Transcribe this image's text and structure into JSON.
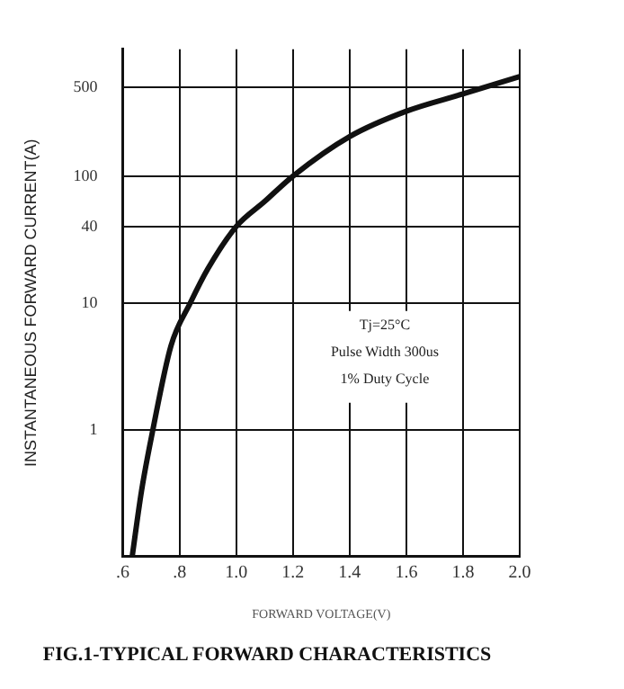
{
  "chart_data": {
    "type": "line",
    "title": "FIG.1-TYPICAL FORWARD CHARACTERISTICS",
    "xlabel": "FORWARD VOLTAGE(V)",
    "ylabel": "INSTANTANEOUS FORWARD CURRENT(A)",
    "annotations": [
      "Tj=25°C",
      "Pulse Width 300us",
      "1% Duty Cycle"
    ],
    "series": [
      {
        "color": "#111111",
        "x": [
          0.633,
          0.666,
          0.706,
          0.77,
          0.838,
          0.9,
          1.0,
          1.1,
          1.2,
          1.4,
          1.6,
          1.8,
          2.0
        ],
        "values": [
          0.1,
          0.33,
          1,
          4.6,
          10,
          18.6,
          40,
          63,
          100,
          205,
          325,
          445,
          610
        ]
      }
    ],
    "xlim": [
      0.6,
      2.0
    ],
    "xticks": [
      {
        "value": 0.6,
        "label": ".6"
      },
      {
        "value": 0.8,
        "label": ".8"
      },
      {
        "value": 1.0,
        "label": "1.0"
      },
      1.2,
      1.4,
      1.6,
      1.8,
      {
        "value": 2.0,
        "label": "2.0"
      }
    ],
    "ylim": [
      0.1,
      1000
    ],
    "yticks": [
      1,
      10,
      40,
      100,
      500
    ],
    "log": true,
    "grid": true,
    "legend": false,
    "marker": "none",
    "line_style": "solid"
  }
}
